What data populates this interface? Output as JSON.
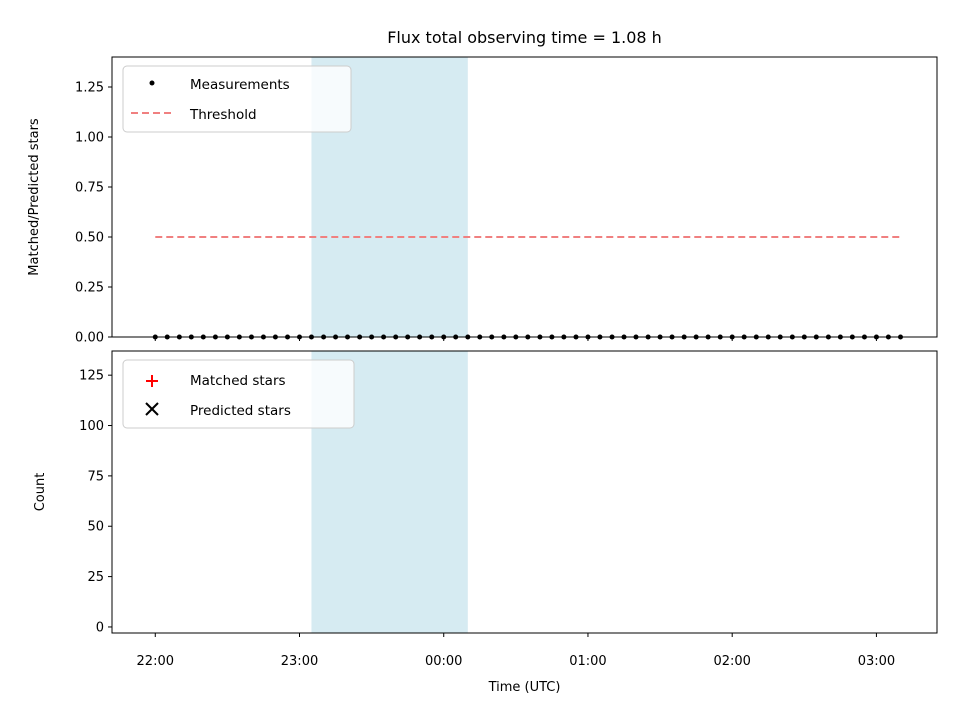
{
  "chart_data": [
    {
      "type": "scatter",
      "title": "Flux total observing time = 1.08 h",
      "xlabel": "",
      "ylabel": "Matched/Predicted stars",
      "xlim": [
        -0.3,
        5.42
      ],
      "ylim": [
        0,
        1.4
      ],
      "yticks": [
        0.0,
        0.25,
        0.5,
        0.75,
        1.0,
        1.25
      ],
      "ytick_labels": [
        "0.00",
        "0.25",
        "0.50",
        "0.75",
        "1.00",
        "1.25"
      ],
      "highlight_span": [
        1.083,
        2.167
      ],
      "highlight_color": "#add8e6",
      "legend_position": "upper-left",
      "series": [
        {
          "name": "Measurements",
          "color": "#000000",
          "marker": "dot",
          "x": [
            0.0,
            0.083,
            0.167,
            0.25,
            0.333,
            0.417,
            0.5,
            0.583,
            0.667,
            0.75,
            0.833,
            0.917,
            1.0,
            1.083,
            1.167,
            1.25,
            1.333,
            1.417,
            1.5,
            1.583,
            1.667,
            1.75,
            1.833,
            1.917,
            2.0,
            2.083,
            2.167,
            2.25,
            2.333,
            2.417,
            2.5,
            2.583,
            2.667,
            2.75,
            2.833,
            2.917,
            3.0,
            3.083,
            3.167,
            3.25,
            3.333,
            3.417,
            3.5,
            3.583,
            3.667,
            3.75,
            3.833,
            3.917,
            4.0,
            4.083,
            4.167,
            4.25,
            4.333,
            4.417,
            4.5,
            4.583,
            4.667,
            4.75,
            4.833,
            4.917,
            5.0,
            5.083,
            5.167
          ],
          "y": [
            0,
            0,
            0,
            0,
            0,
            0,
            0,
            0,
            0,
            0,
            0,
            0,
            0,
            0,
            0,
            0,
            0,
            0,
            0,
            0,
            0,
            0,
            0,
            0,
            0,
            0,
            0,
            0,
            0,
            0,
            0,
            0,
            0,
            0,
            0,
            0,
            0,
            0,
            0,
            0,
            0,
            0,
            0,
            0,
            0,
            0,
            0,
            0,
            0,
            0,
            0,
            0,
            0,
            0,
            0,
            0,
            0,
            0,
            0,
            0,
            0,
            0,
            0
          ]
        },
        {
          "name": "Threshold",
          "color": "#f08080",
          "marker": "dashed-line",
          "x": [
            0.0,
            5.167
          ],
          "y": [
            0.5,
            0.5
          ]
        }
      ]
    },
    {
      "type": "scatter",
      "title": "",
      "xlabel": "Time (UTC)",
      "ylabel": "Count",
      "xlim": [
        -0.3,
        5.42
      ],
      "ylim": [
        -3,
        137
      ],
      "xticks": [
        0,
        1,
        2,
        3,
        4,
        5
      ],
      "xtick_labels": [
        "22:00",
        "23:00",
        "00:00",
        "01:00",
        "02:00",
        "03:00"
      ],
      "yticks": [
        0,
        25,
        50,
        75,
        100,
        125
      ],
      "ytick_labels": [
        "0",
        "25",
        "50",
        "75",
        "100",
        "125"
      ],
      "highlight_span": [
        1.083,
        2.167
      ],
      "highlight_color": "#add8e6",
      "legend_position": "upper-left",
      "series": [
        {
          "name": "Matched stars",
          "color": "#ff0000",
          "marker": "plus",
          "x": [],
          "y": []
        },
        {
          "name": "Predicted stars",
          "color": "#000000",
          "marker": "x",
          "x": [],
          "y": []
        }
      ]
    }
  ]
}
